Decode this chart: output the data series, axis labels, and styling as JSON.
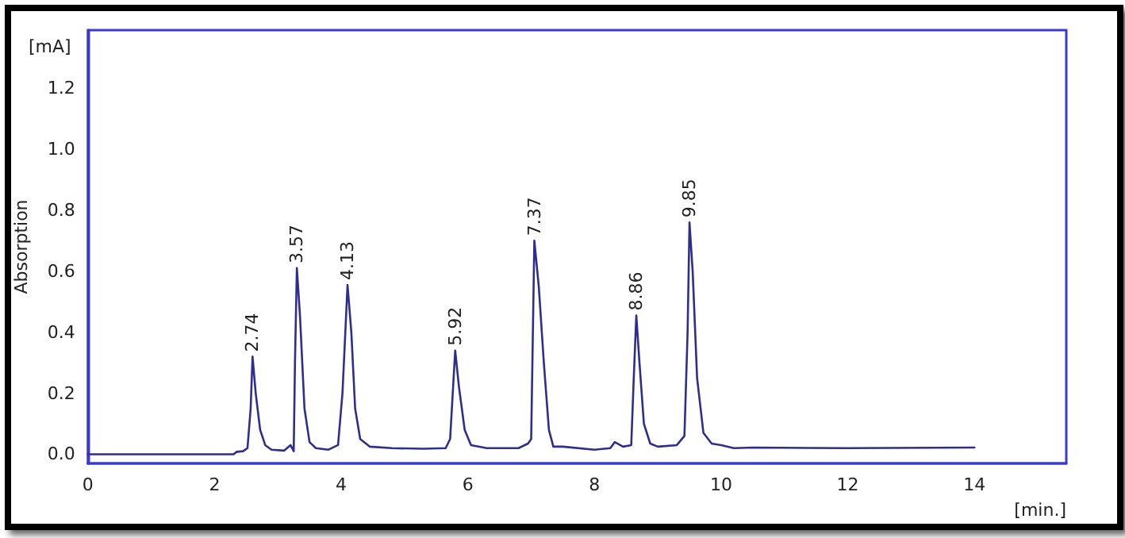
{
  "chart_data": {
    "type": "line",
    "ylabel": "Absorption",
    "xlabel": "[min.]",
    "annotations": [
      {
        "text": "2.74",
        "x": 2.6,
        "y": 0.32
      },
      {
        "text": "3.57",
        "x": 3.3,
        "y": 0.61
      },
      {
        "text": "4.13",
        "x": 4.1,
        "y": 0.555
      },
      {
        "text": "5.92",
        "x": 5.8,
        "y": 0.34
      },
      {
        "text": "7.37",
        "x": 7.05,
        "y": 0.7
      },
      {
        "text": "8.86",
        "x": 8.66,
        "y": 0.455
      },
      {
        "text": "9.85",
        "x": 9.5,
        "y": 0.76
      },
      "[mA]"
    ],
    "x": [
      0,
      2.3,
      2.35,
      2.45,
      2.52,
      2.57,
      2.6,
      2.65,
      2.72,
      2.8,
      2.9,
      3.1,
      3.2,
      3.25,
      3.27,
      3.3,
      3.35,
      3.42,
      3.5,
      3.6,
      3.8,
      3.95,
      4.02,
      4.1,
      4.16,
      4.22,
      4.3,
      4.45,
      4.8,
      5.3,
      5.65,
      5.72,
      5.8,
      5.86,
      5.95,
      6.05,
      6.3,
      6.8,
      6.95,
      7.0,
      7.05,
      7.12,
      7.2,
      7.28,
      7.35,
      7.5,
      8.0,
      8.25,
      8.32,
      8.45,
      8.58,
      8.62,
      8.66,
      8.71,
      8.78,
      8.88,
      9.0,
      9.3,
      9.42,
      9.47,
      9.5,
      9.55,
      9.62,
      9.72,
      9.85,
      10.0,
      10.2,
      10.5,
      12,
      14
    ],
    "series": [
      {
        "color": "#2e2e8f",
        "values": [
          0,
          0,
          0.008,
          0.01,
          0.02,
          0.15,
          0.32,
          0.2,
          0.08,
          0.03,
          0.015,
          0.012,
          0.03,
          0.01,
          0.3,
          0.61,
          0.45,
          0.15,
          0.04,
          0.02,
          0.015,
          0.03,
          0.2,
          0.555,
          0.4,
          0.15,
          0.05,
          0.025,
          0.02,
          0.018,
          0.02,
          0.05,
          0.34,
          0.22,
          0.08,
          0.03,
          0.02,
          0.02,
          0.035,
          0.05,
          0.7,
          0.55,
          0.3,
          0.08,
          0.025,
          0.025,
          0.015,
          0.02,
          0.04,
          0.025,
          0.03,
          0.25,
          0.455,
          0.3,
          0.1,
          0.035,
          0.025,
          0.03,
          0.06,
          0.4,
          0.76,
          0.6,
          0.25,
          0.07,
          0.035,
          0.03,
          0.02,
          0.022,
          0.02,
          0.022
        ]
      }
    ],
    "xlim": [
      0,
      15.45
    ],
    "ylim": [
      -0.03,
      1.39
    ],
    "xticks": [
      0,
      2,
      4,
      6,
      8,
      10,
      12,
      14
    ],
    "yticks": [
      {
        "value": 0,
        "label": "0.0"
      },
      {
        "value": 0.2,
        "label": "0.2"
      },
      {
        "value": 0.4,
        "label": "0.4"
      },
      {
        "value": 0.6,
        "label": "0.6"
      },
      {
        "value": 0.8,
        "label": "0.8"
      },
      {
        "value": 1,
        "label": "1.0"
      },
      {
        "value": 1.2,
        "label": "1.2"
      }
    ],
    "grid": false,
    "marker": "none",
    "line_style": "solid"
  }
}
